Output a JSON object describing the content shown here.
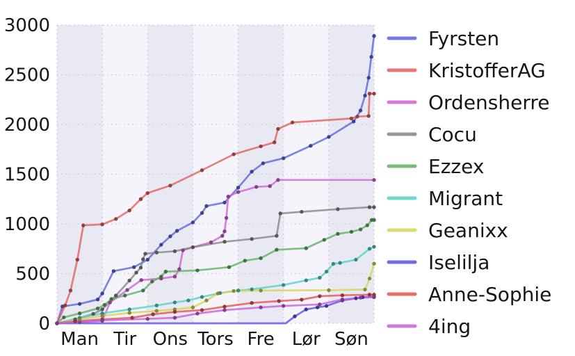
{
  "chart_data": {
    "type": "line",
    "title": "",
    "xlabel": "",
    "ylabel": "",
    "x_tick_labels": [
      "Man",
      "Tir",
      "Ons",
      "Tors",
      "Fre",
      "Lør",
      "Søn"
    ],
    "y_ticks": [
      0,
      500,
      1000,
      1500,
      2000,
      2500,
      3000
    ],
    "ylim": [
      0,
      3000
    ],
    "xlim": [
      0,
      7
    ],
    "grid": "dotted",
    "grid_color": "#c7c7d2",
    "legend_position": "right-outside",
    "plot_band_colors": [
      "#e9e9f3",
      "#f4f4fa"
    ],
    "series": [
      {
        "name": "Fyrsten",
        "color": "#5a64da",
        "points": [
          [
            0,
            0
          ],
          [
            0.12,
            170
          ],
          [
            0.5,
            195
          ],
          [
            0.9,
            240
          ],
          [
            1.0,
            300
          ],
          [
            1.25,
            525
          ],
          [
            1.7,
            565
          ],
          [
            2.0,
            640
          ],
          [
            2.3,
            790
          ],
          [
            2.5,
            875
          ],
          [
            2.65,
            930
          ],
          [
            3.0,
            1015
          ],
          [
            3.2,
            1110
          ],
          [
            3.3,
            1180
          ],
          [
            3.7,
            1215
          ],
          [
            4.0,
            1365
          ],
          [
            4.3,
            1525
          ],
          [
            4.55,
            1610
          ],
          [
            5.0,
            1660
          ],
          [
            5.6,
            1785
          ],
          [
            6.0,
            1875
          ],
          [
            6.55,
            2030
          ],
          [
            6.7,
            2140
          ],
          [
            6.8,
            2290
          ],
          [
            6.88,
            2470
          ],
          [
            6.94,
            2680
          ],
          [
            7.0,
            2890
          ]
        ]
      },
      {
        "name": "KristofferAG",
        "color": "#e25f5c",
        "points": [
          [
            0,
            0
          ],
          [
            0.18,
            180
          ],
          [
            0.3,
            330
          ],
          [
            0.45,
            640
          ],
          [
            0.58,
            985
          ],
          [
            1.0,
            995
          ],
          [
            1.3,
            1050
          ],
          [
            1.6,
            1135
          ],
          [
            1.85,
            1250
          ],
          [
            2.0,
            1310
          ],
          [
            2.5,
            1385
          ],
          [
            3.2,
            1540
          ],
          [
            3.9,
            1700
          ],
          [
            4.5,
            1780
          ],
          [
            4.8,
            1820
          ],
          [
            4.88,
            1955
          ],
          [
            5.2,
            2020
          ],
          [
            6.5,
            2060
          ],
          [
            6.63,
            2080
          ],
          [
            6.88,
            2085
          ],
          [
            6.9,
            2310
          ],
          [
            7.0,
            2310
          ]
        ]
      },
      {
        "name": "Ordensherre",
        "color": "#cd62d2",
        "points": [
          [
            0,
            0
          ],
          [
            0.5,
            12
          ],
          [
            1.0,
            25
          ],
          [
            1.17,
            210
          ],
          [
            1.55,
            335
          ],
          [
            1.86,
            435
          ],
          [
            2.3,
            450
          ],
          [
            2.6,
            470
          ],
          [
            2.7,
            545
          ],
          [
            2.78,
            735
          ],
          [
            3.0,
            765
          ],
          [
            3.4,
            815
          ],
          [
            3.65,
            880
          ],
          [
            3.7,
            925
          ],
          [
            3.74,
            1060
          ],
          [
            3.78,
            1275
          ],
          [
            4.0,
            1320
          ],
          [
            4.4,
            1372
          ],
          [
            4.7,
            1380
          ],
          [
            4.88,
            1442
          ],
          [
            7.0,
            1442
          ]
        ]
      },
      {
        "name": "Cocu",
        "color": "#858585",
        "points": [
          [
            0,
            0
          ],
          [
            0.4,
            40
          ],
          [
            0.8,
            95
          ],
          [
            1.0,
            140
          ],
          [
            1.3,
            280
          ],
          [
            1.6,
            430
          ],
          [
            1.75,
            510
          ],
          [
            1.85,
            560
          ],
          [
            1.9,
            645
          ],
          [
            1.95,
            700
          ],
          [
            2.2,
            712
          ],
          [
            2.6,
            725
          ],
          [
            3.0,
            765
          ],
          [
            3.7,
            820
          ],
          [
            4.3,
            848
          ],
          [
            4.85,
            880
          ],
          [
            4.93,
            1105
          ],
          [
            5.4,
            1122
          ],
          [
            6.2,
            1148
          ],
          [
            6.9,
            1168
          ],
          [
            7.0,
            1168
          ]
        ]
      },
      {
        "name": "Ezzex",
        "color": "#61b061",
        "points": [
          [
            0,
            0
          ],
          [
            0.15,
            60
          ],
          [
            0.5,
            100
          ],
          [
            0.9,
            150
          ],
          [
            1.05,
            185
          ],
          [
            1.2,
            245
          ],
          [
            1.5,
            280
          ],
          [
            1.9,
            330
          ],
          [
            2.1,
            420
          ],
          [
            2.3,
            470
          ],
          [
            2.4,
            520
          ],
          [
            3.1,
            532
          ],
          [
            3.8,
            565
          ],
          [
            4.15,
            630
          ],
          [
            4.5,
            655
          ],
          [
            4.85,
            740
          ],
          [
            5.5,
            755
          ],
          [
            5.9,
            840
          ],
          [
            6.2,
            900
          ],
          [
            6.5,
            920
          ],
          [
            6.7,
            945
          ],
          [
            6.85,
            985
          ],
          [
            6.95,
            1040
          ],
          [
            7.0,
            1040
          ]
        ]
      },
      {
        "name": "Migrant",
        "color": "#52d2c8",
        "points": [
          [
            0,
            0
          ],
          [
            0.5,
            55
          ],
          [
            1.0,
            100
          ],
          [
            1.6,
            140
          ],
          [
            2.2,
            180
          ],
          [
            2.6,
            210
          ],
          [
            2.9,
            230
          ],
          [
            3.2,
            265
          ],
          [
            3.6,
            305
          ],
          [
            4.0,
            330
          ],
          [
            4.3,
            342
          ],
          [
            5.0,
            385
          ],
          [
            5.5,
            432
          ],
          [
            5.8,
            458
          ],
          [
            5.95,
            520
          ],
          [
            6.1,
            598
          ],
          [
            6.25,
            608
          ],
          [
            6.6,
            640
          ],
          [
            6.9,
            750
          ],
          [
            7.0,
            770
          ]
        ]
      },
      {
        "name": "Geanixx",
        "color": "#d8d455",
        "points": [
          [
            0,
            0
          ],
          [
            0.5,
            40
          ],
          [
            1.0,
            75
          ],
          [
            1.6,
            105
          ],
          [
            2.2,
            125
          ],
          [
            2.6,
            140
          ],
          [
            3.0,
            160
          ],
          [
            3.3,
            230
          ],
          [
            3.55,
            300
          ],
          [
            3.9,
            325
          ],
          [
            4.5,
            330
          ],
          [
            6.0,
            333
          ],
          [
            6.8,
            340
          ],
          [
            6.9,
            450
          ],
          [
            7.0,
            600
          ]
        ]
      },
      {
        "name": "Iselilja",
        "color": "#5950e0",
        "points": [
          [
            0,
            0
          ],
          [
            5.05,
            0
          ],
          [
            5.25,
            70
          ],
          [
            5.5,
            140
          ],
          [
            5.75,
            160
          ],
          [
            5.95,
            175
          ],
          [
            6.3,
            230
          ],
          [
            6.6,
            252
          ],
          [
            6.75,
            262
          ],
          [
            7.0,
            268
          ]
        ]
      },
      {
        "name": "Anne-Sophie",
        "color": "#e25250",
        "points": [
          [
            0,
            0
          ],
          [
            0.4,
            20
          ],
          [
            1.0,
            40
          ],
          [
            1.66,
            56
          ],
          [
            2.12,
            91
          ],
          [
            2.6,
            115
          ],
          [
            3.2,
            133
          ],
          [
            3.7,
            168
          ],
          [
            4.3,
            205
          ],
          [
            4.9,
            224
          ],
          [
            5.4,
            238
          ],
          [
            5.8,
            273
          ],
          [
            6.3,
            282
          ],
          [
            6.9,
            288
          ],
          [
            7.0,
            288
          ]
        ]
      },
      {
        "name": "4ing",
        "color": "#c75fd8",
        "points": [
          [
            0,
            0
          ],
          [
            1.0,
            30
          ],
          [
            2.0,
            45
          ],
          [
            2.6,
            56
          ],
          [
            3.1,
            98
          ],
          [
            3.7,
            133
          ],
          [
            4.5,
            160
          ],
          [
            5.0,
            175
          ],
          [
            5.8,
            190
          ],
          [
            6.3,
            240
          ],
          [
            6.7,
            258
          ],
          [
            7.0,
            262
          ]
        ]
      }
    ]
  }
}
